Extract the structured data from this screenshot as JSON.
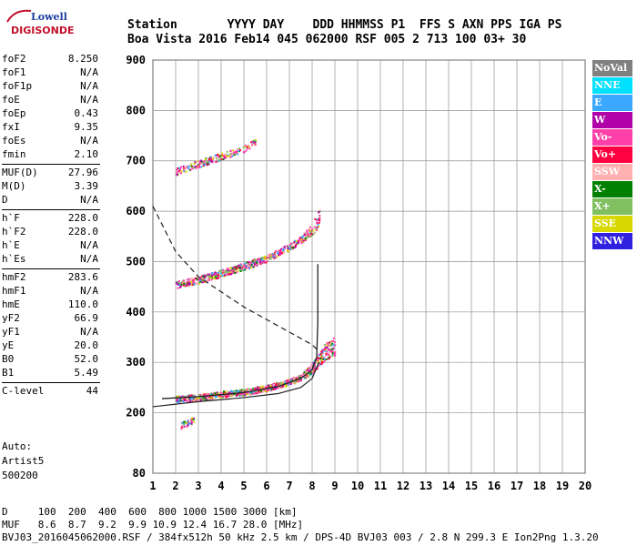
{
  "logo": {
    "line1": "Lowell",
    "line2": "DIGISONDE"
  },
  "header": {
    "line1": "Station       YYYY DAY    DDD HHMMSS P1  FFS S AXN PPS IGA PS",
    "line2": "Boa Vista 2016 Feb14 045 062000 RSF 005 2 713 100 03+ 30"
  },
  "params": [
    {
      "label": "foF2",
      "value": "8.250"
    },
    {
      "label": "foF1",
      "value": "N/A"
    },
    {
      "label": "foF1p",
      "value": "N/A"
    },
    {
      "label": "foE",
      "value": "N/A"
    },
    {
      "label": "foEp",
      "value": "0.43"
    },
    {
      "label": "fxI",
      "value": "9.35"
    },
    {
      "label": "foEs",
      "value": "N/A"
    },
    {
      "label": "fmin",
      "value": "2.10"
    },
    {
      "label": "MUF(D)",
      "value": "27.96"
    },
    {
      "label": "M(D)",
      "value": "3.39"
    },
    {
      "label": "D",
      "value": "N/A"
    },
    {
      "label": "h`F",
      "value": "228.0"
    },
    {
      "label": "h`F2",
      "value": "228.0"
    },
    {
      "label": "h`E",
      "value": "N/A"
    },
    {
      "label": "h`Es",
      "value": "N/A"
    },
    {
      "label": "hmF2",
      "value": "283.6"
    },
    {
      "label": "hmF1",
      "value": "N/A"
    },
    {
      "label": "hmE",
      "value": "110.0"
    },
    {
      "label": "yF2",
      "value": "66.9"
    },
    {
      "label": "yF1",
      "value": "N/A"
    },
    {
      "label": "yE",
      "value": "20.0"
    },
    {
      "label": "B0",
      "value": "52.0"
    },
    {
      "label": "B1",
      "value": "5.49"
    },
    {
      "label": "C-level",
      "value": "44"
    }
  ],
  "auto": {
    "line1": "Auto:",
    "line2": "Artist5",
    "line3": "500200"
  },
  "legend": [
    {
      "name": "NoVal",
      "color": "#808080"
    },
    {
      "name": "NNE",
      "color": "#00e0ff"
    },
    {
      "name": "E",
      "color": "#3aa8ff"
    },
    {
      "name": "W",
      "color": "#b000a8"
    },
    {
      "name": "Vo-",
      "color": "#ff40a8"
    },
    {
      "name": "Vo+",
      "color": "#ff0040"
    },
    {
      "name": "SSW",
      "color": "#ffb0b0"
    },
    {
      "name": "X-",
      "color": "#008000"
    },
    {
      "name": "X+",
      "color": "#80c060"
    },
    {
      "name": "SSE",
      "color": "#d8d800"
    },
    {
      "name": "NNW",
      "color": "#3020e0"
    }
  ],
  "footer": {
    "line1": "D     100  200  400  600  800 1000 1500 3000 [km]",
    "line2": "MUF   8.6  8.7  9.2  9.9 10.9 12.4 16.7 28.0 [MHz]",
    "line3": "BVJ03_2016045062000.RSF / 384fx512h 50 kHz 2.5 km / DPS-4D BVJ03 003 / 2.8 N 299.3 E Ion2Png 1.3.20"
  },
  "chart_data": {
    "type": "scatter",
    "xlim": [
      1,
      20
    ],
    "ylim": [
      80,
      900
    ],
    "xticks": [
      1,
      2,
      3,
      4,
      5,
      6,
      7,
      8,
      9,
      10,
      11,
      12,
      13,
      14,
      15,
      16,
      17,
      18,
      19,
      20
    ],
    "yticks": [
      80,
      200,
      300,
      400,
      500,
      600,
      700,
      800,
      900
    ],
    "grid": true,
    "traces": [
      {
        "name": "O-trace F2",
        "points": [
          [
            2,
            228
          ],
          [
            3,
            232
          ],
          [
            4,
            238
          ],
          [
            5,
            242
          ],
          [
            6,
            250
          ],
          [
            7,
            262
          ],
          [
            7.5,
            272
          ],
          [
            8,
            290
          ],
          [
            8.5,
            320
          ],
          [
            9,
            335
          ]
        ]
      },
      {
        "name": "O-trace 2nd hop",
        "points": [
          [
            2,
            455
          ],
          [
            3,
            465
          ],
          [
            4,
            478
          ],
          [
            5,
            492
          ],
          [
            6,
            508
          ],
          [
            7,
            530
          ],
          [
            7.5,
            545
          ],
          [
            8,
            565
          ],
          [
            8.3,
            590
          ]
        ]
      },
      {
        "name": "O-trace 3rd hop",
        "points": [
          [
            2,
            680
          ],
          [
            3,
            695
          ],
          [
            4,
            710
          ],
          [
            5,
            725
          ],
          [
            5.5,
            740
          ]
        ]
      },
      {
        "name": "Sporadic low",
        "points": [
          [
            2.2,
            175
          ],
          [
            2.5,
            180
          ],
          [
            2.8,
            188
          ]
        ]
      }
    ],
    "profile_line": [
      [
        1.4,
        228
      ],
      [
        3,
        232
      ],
      [
        5,
        240
      ],
      [
        6.5,
        252
      ],
      [
        7.5,
        268
      ],
      [
        8,
        285
      ],
      [
        8.2,
        310
      ],
      [
        8.25,
        380
      ],
      [
        8.25,
        495
      ]
    ],
    "lower_profile": [
      [
        1,
        212
      ],
      [
        3,
        222
      ],
      [
        5,
        230
      ],
      [
        6.5,
        238
      ],
      [
        7.5,
        250
      ],
      [
        8,
        268
      ],
      [
        8.3,
        300
      ]
    ],
    "muf_curve_dashed": [
      [
        1,
        610
      ],
      [
        2,
        520
      ],
      [
        3,
        470
      ],
      [
        4,
        440
      ],
      [
        5,
        410
      ],
      [
        6,
        385
      ],
      [
        7,
        360
      ],
      [
        8,
        335
      ],
      [
        8.3,
        322
      ]
    ]
  }
}
